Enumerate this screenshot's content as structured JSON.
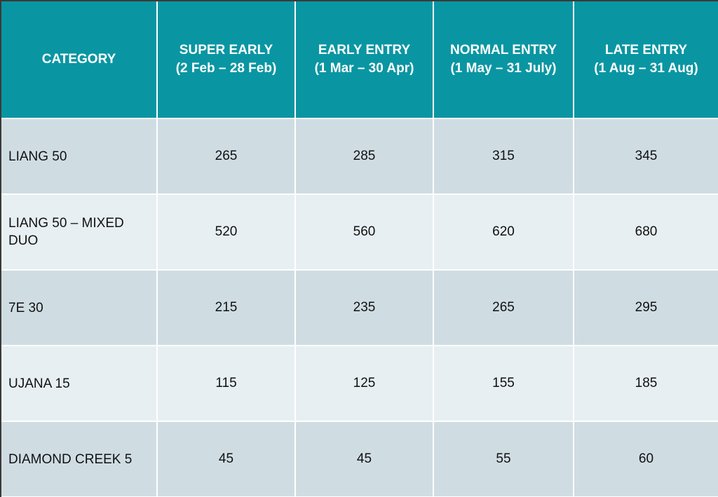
{
  "table": {
    "header": [
      {
        "title": "CATEGORY"
      },
      {
        "title": "SUPER EARLY",
        "dates": "(2 Feb – 28 Feb)"
      },
      {
        "title": "EARLY ENTRY",
        "dates": "(1 Mar – 30 Apr)"
      },
      {
        "title": "NORMAL ENTRY",
        "dates": "(1 May – 31 July)"
      },
      {
        "title": "LATE ENTRY",
        "dates": "(1 Aug – 31 Aug)"
      }
    ],
    "rows": [
      [
        "LIANG 50",
        265,
        285,
        315,
        345
      ],
      [
        "LIANG 50 – MIXED DUO",
        520,
        560,
        620,
        680
      ],
      [
        "7E 30",
        215,
        235,
        265,
        295
      ],
      [
        "UJANA 15",
        115,
        125,
        155,
        185
      ],
      [
        "DIAMOND CREEK 5",
        45,
        45,
        55,
        60
      ]
    ]
  }
}
